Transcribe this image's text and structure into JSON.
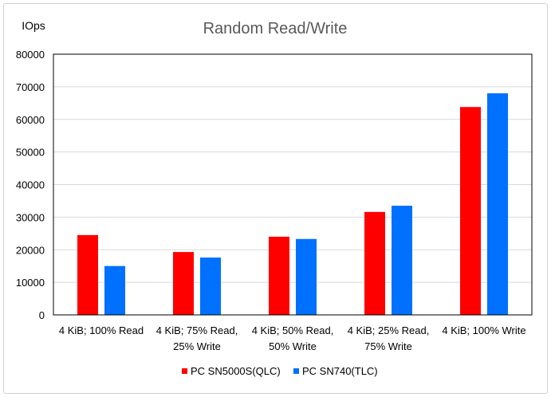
{
  "chart_data": {
    "type": "bar",
    "title": "Random Read/Write",
    "ylabel": "IOps",
    "xlabel": "",
    "ylim": [
      0,
      80000
    ],
    "yticks": [
      0,
      10000,
      20000,
      30000,
      40000,
      50000,
      60000,
      70000,
      80000
    ],
    "grid": true,
    "legend_position": "bottom",
    "categories": [
      [
        "4 KiB; 100% Read"
      ],
      [
        "4 KiB; 75% Read,",
        "25% Write"
      ],
      [
        "4 KiB; 50% Read,",
        "50% Write"
      ],
      [
        "4 KiB; 25% Read,",
        "75% Write"
      ],
      [
        "4 KiB; 100% Write"
      ]
    ],
    "series": [
      {
        "name": "PC SN5000S(QLC)",
        "color": "#ff0000",
        "values": [
          24500,
          19300,
          24000,
          31600,
          63800
        ]
      },
      {
        "name": "PC SN740(TLC)",
        "color": "#0070ff",
        "values": [
          15000,
          17600,
          23300,
          33500,
          68000
        ]
      }
    ]
  }
}
